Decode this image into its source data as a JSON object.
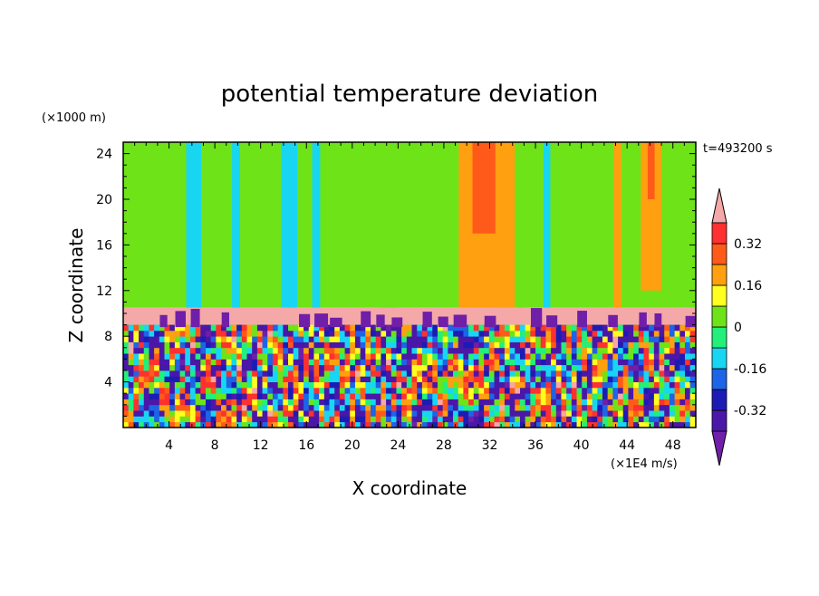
{
  "chart_data": {
    "type": "heatmap",
    "title": "potential temperature deviation",
    "xlabel": "X coordinate",
    "ylabel": "Z coordinate",
    "x_unit": "(×1E4 m/s)",
    "y_unit": "(×1000 m)",
    "time_label": "t=493200 s",
    "xlim": [
      0,
      50
    ],
    "ylim": [
      0,
      25
    ],
    "x_ticks": [
      4,
      8,
      12,
      16,
      20,
      24,
      28,
      32,
      36,
      40,
      44,
      48
    ],
    "y_ticks": [
      4,
      8,
      12,
      16,
      20,
      24
    ],
    "colorbar": {
      "levels": [
        -0.4,
        -0.32,
        -0.24,
        -0.16,
        -0.08,
        0,
        0.08,
        0.16,
        0.24,
        0.32,
        0.4
      ],
      "tick_labels": [
        "0.32",
        "0.16",
        "0",
        "-0.16",
        "-0.32"
      ],
      "tick_values": [
        0.32,
        0.16,
        0,
        -0.16,
        -0.32
      ],
      "colors_low_to_high": [
        "#6f1fa8",
        "#4b17a8",
        "#1c1cb5",
        "#1e64e6",
        "#18d6f2",
        "#22f07a",
        "#6ee318",
        "#ffff20",
        "#ffa010",
        "#ff5a1a",
        "#ff3030",
        "#f5a8a8"
      ],
      "extend": "both"
    },
    "regions": [
      {
        "name": "upper-layer",
        "z_range": [
          10.5,
          25
        ],
        "dominant_value": 0.02
      },
      {
        "name": "inversion-layer",
        "z_range": [
          9,
          10.5
        ],
        "dominant_value": 0.45
      },
      {
        "name": "convective-layer",
        "z_range": [
          0,
          9
        ],
        "dominant_value": "mixed"
      }
    ],
    "columns": [
      {
        "x_range": [
          5.5,
          6.8
        ],
        "z_range": [
          10.5,
          25
        ],
        "value": -0.12
      },
      {
        "x_range": [
          9.5,
          10.2
        ],
        "z_range": [
          10.5,
          25
        ],
        "value": -0.1
      },
      {
        "x_range": [
          13.8,
          15.2
        ],
        "z_range": [
          10.5,
          25
        ],
        "value": -0.12
      },
      {
        "x_range": [
          16.5,
          17.2
        ],
        "z_range": [
          10.5,
          25
        ],
        "value": -0.1
      },
      {
        "x_range": [
          22.5,
          24.0
        ],
        "z_range": [
          10.5,
          25
        ],
        "value": 0.06
      },
      {
        "x_range": [
          29.3,
          34.2
        ],
        "z_range": [
          10.5,
          25
        ],
        "value": 0.2
      },
      {
        "x_range": [
          30.5,
          32.5
        ],
        "z_range": [
          17,
          25
        ],
        "value": 0.3
      },
      {
        "x_range": [
          33.0,
          33.8
        ],
        "z_range": [
          10.5,
          25
        ],
        "value": 0.16
      },
      {
        "x_range": [
          34.5,
          35.0
        ],
        "z_range": [
          10.5,
          25
        ],
        "value": 0.06
      },
      {
        "x_range": [
          36.7,
          37.3
        ],
        "z_range": [
          10.5,
          25
        ],
        "value": -0.12
      },
      {
        "x_range": [
          42.8,
          43.5
        ],
        "z_range": [
          10.5,
          25
        ],
        "value": 0.16
      },
      {
        "x_range": [
          45.2,
          47.0
        ],
        "z_range": [
          12,
          25
        ],
        "value": 0.2
      },
      {
        "x_range": [
          45.8,
          46.4
        ],
        "z_range": [
          20,
          25
        ],
        "value": 0.3
      }
    ]
  }
}
